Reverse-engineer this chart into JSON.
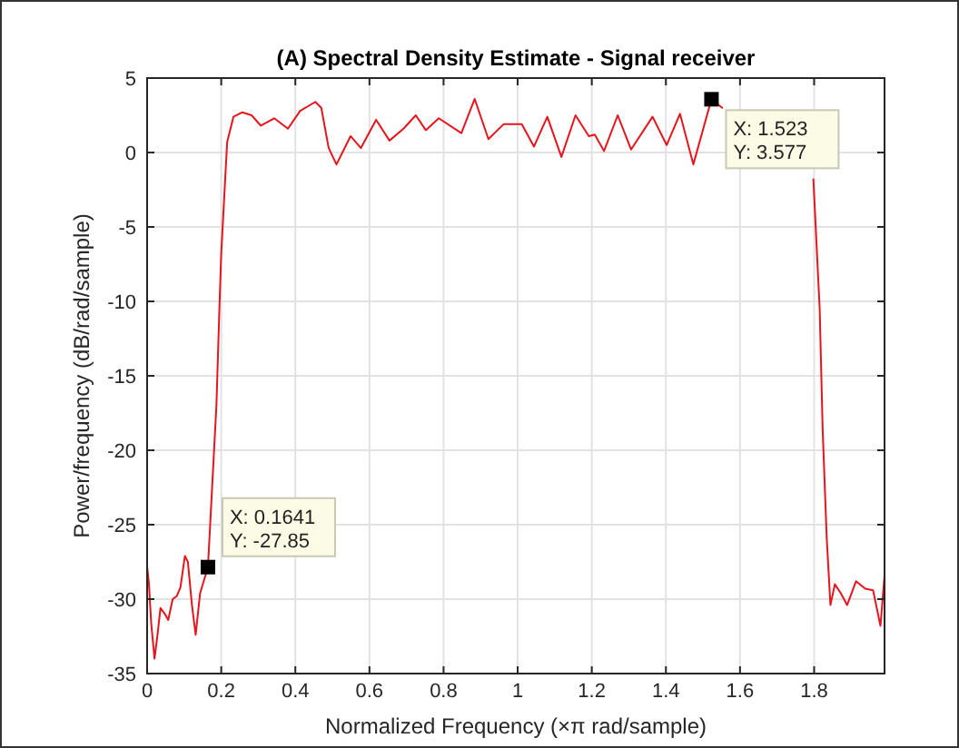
{
  "chart_data": {
    "type": "line",
    "title": "(A) Spectral Density Estimate - Signal receiver",
    "xlabel": "Normalized Frequency  (×π rad/sample)",
    "ylabel": "Power/frequency (dB/rad/sample)",
    "x": [
      0,
      0.005,
      0.011,
      0.02,
      0.028,
      0.036,
      0.048,
      0.057,
      0.069,
      0.08,
      0.09,
      0.102,
      0.11,
      0.121,
      0.131,
      0.143,
      0.1641,
      0.175,
      0.187,
      0.195,
      0.2,
      0.216,
      0.233,
      0.257,
      0.282,
      0.307,
      0.343,
      0.38,
      0.413,
      0.454,
      0.47,
      0.49,
      0.511,
      0.549,
      0.577,
      0.618,
      0.654,
      0.692,
      0.725,
      0.752,
      0.787,
      0.848,
      0.884,
      0.921,
      0.962,
      1.011,
      1.044,
      1.08,
      1.118,
      1.156,
      1.192,
      1.208,
      1.233,
      1.27,
      1.306,
      1.364,
      1.402,
      1.438,
      1.474,
      1.523,
      1.552,
      1.577,
      1.68,
      1.798,
      1.815,
      1.823,
      1.834,
      1.844,
      1.856,
      1.872,
      1.889,
      1.913,
      1.938,
      1.959,
      1.979,
      1.99
    ],
    "series": [
      {
        "color": "#e8141c",
        "values": [
          -27.8,
          -29,
          -31.6,
          -34,
          -32.4,
          -30.6,
          -31,
          -31.4,
          -30,
          -29.8,
          -29.2,
          -27.1,
          -27.5,
          -30.4,
          -32.4,
          -29.6,
          -27.85,
          -22.7,
          -17,
          -10.5,
          -6.8,
          0.7,
          2.4,
          2.7,
          2.5,
          1.8,
          2.3,
          1.6,
          2.8,
          3.4,
          3.0,
          0.3,
          -0.8,
          1.1,
          0.3,
          2.2,
          0.8,
          1.6,
          2.5,
          1.5,
          2.3,
          1.3,
          3.6,
          0.9,
          1.9,
          1.9,
          0.4,
          2.4,
          -0.3,
          2.5,
          1.1,
          1.2,
          0.1,
          2.5,
          0.2,
          2.4,
          0.5,
          2.6,
          -0.8,
          3.577,
          3.0,
          null,
          null,
          -1.8,
          -10.5,
          -18.6,
          -25.9,
          -30.4,
          -29,
          -29.6,
          -30.4,
          -28.8,
          -29.3,
          -29.4,
          -31.8,
          -28.4
        ]
      }
    ],
    "xlim": [
      0,
      1.99
    ],
    "xticks": [
      0,
      0.2,
      0.4,
      0.6,
      0.8,
      1,
      1.2,
      1.4,
      1.6,
      1.8
    ],
    "ylim": [
      -35,
      5
    ],
    "yticks": [
      -35,
      -30,
      -25,
      -20,
      -15,
      -10,
      -5,
      0,
      5
    ],
    "grid": true,
    "line_style": "solid",
    "marker": "none",
    "annotations": [
      {
        "text": "X: 0.1641\nY: -27.85",
        "x": 0.1641,
        "y": -27.85
      },
      {
        "text": "X: 1.523\nY: 3.577",
        "x": 1.523,
        "y": 3.577
      }
    ]
  }
}
